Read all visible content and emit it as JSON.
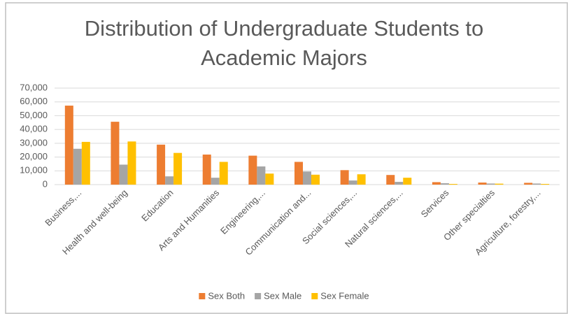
{
  "chart_data": {
    "type": "bar",
    "title": "Distribution of Undergraduate Students to Academic Majors",
    "categories": [
      "Business,...",
      "Health and well-being",
      "Education",
      "Arts and Humanities",
      "Engineering,...",
      "Communication and...",
      "Social sciences,...",
      "Natural sciences,...",
      "Services",
      "Other specialties",
      "Agriculture, forestry,..."
    ],
    "series": [
      {
        "name": "Sex Both",
        "color": "#ed7d31",
        "values": [
          57300,
          45600,
          29000,
          21800,
          21000,
          16500,
          10500,
          7000,
          1800,
          1500,
          1300
        ]
      },
      {
        "name": "Sex Male",
        "color": "#a5a5a5",
        "values": [
          26000,
          14500,
          6000,
          5000,
          13200,
          9500,
          3000,
          2000,
          1000,
          800,
          800
        ]
      },
      {
        "name": "Sex Female",
        "color": "#ffc000",
        "values": [
          31000,
          31300,
          23000,
          16500,
          8000,
          7200,
          7500,
          5000,
          500,
          700,
          500
        ]
      }
    ],
    "ylim": [
      0,
      70000
    ],
    "yticks": [
      0,
      {
        "value": 10000,
        "label": "10,000"
      },
      {
        "value": 20000,
        "label": "20,000"
      },
      {
        "value": 30000,
        "label": "30,000"
      },
      {
        "value": 40000,
        "label": "40,000"
      },
      {
        "value": 50000,
        "label": "50,000"
      },
      {
        "value": 60000,
        "label": "60,000"
      },
      {
        "value": 70000,
        "label": "70,000"
      }
    ],
    "grid": true,
    "legend": "bottom"
  }
}
